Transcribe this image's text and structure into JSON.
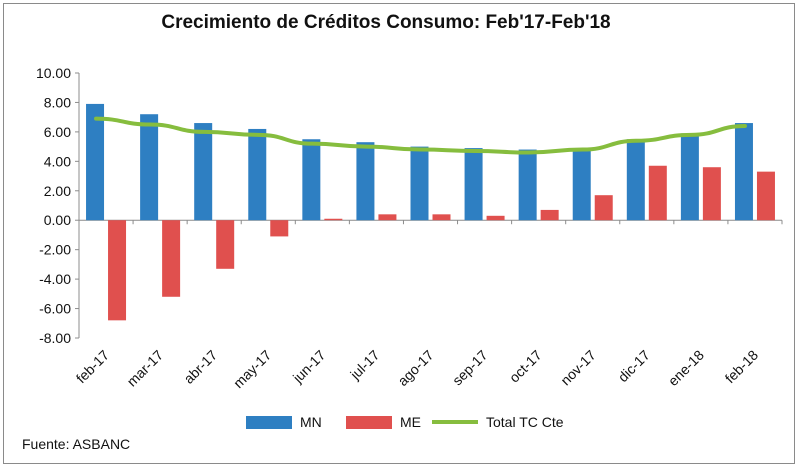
{
  "chart_data": {
    "type": "bar",
    "title": "Crecimiento de Créditos Consumo: Feb'17-Feb'18",
    "source": "Fuente: ASBANC",
    "categories": [
      "feb-17",
      "mar-17",
      "abr-17",
      "may-17",
      "jun-17",
      "jul-17",
      "ago-17",
      "sep-17",
      "oct-17",
      "nov-17",
      "dic-17",
      "ene-18",
      "feb-18"
    ],
    "ylim": [
      -8,
      10
    ],
    "yticks": [
      "10.00",
      "8.00",
      "6.00",
      "4.00",
      "2.00",
      "0.00",
      "-2.00",
      "-4.00",
      "-6.00",
      "-8.00"
    ],
    "grid": false,
    "legend_position": "bottom",
    "series": [
      {
        "name": "MN",
        "type": "bar",
        "color": "#2e7fc2",
        "values": [
          7.9,
          7.2,
          6.6,
          6.2,
          5.5,
          5.3,
          5.0,
          4.9,
          4.8,
          4.9,
          5.5,
          5.9,
          6.6
        ]
      },
      {
        "name": "ME",
        "type": "bar",
        "color": "#e0504e",
        "values": [
          -6.8,
          -5.2,
          -3.3,
          -1.1,
          0.1,
          0.4,
          0.4,
          0.3,
          0.7,
          1.7,
          3.7,
          3.6,
          3.3
        ]
      },
      {
        "name": "Total TC Cte",
        "type": "line",
        "color": "#86bd3e",
        "values": [
          6.9,
          6.5,
          6.0,
          5.8,
          5.2,
          5.0,
          4.8,
          4.7,
          4.6,
          4.8,
          5.4,
          5.8,
          6.4
        ]
      }
    ]
  }
}
